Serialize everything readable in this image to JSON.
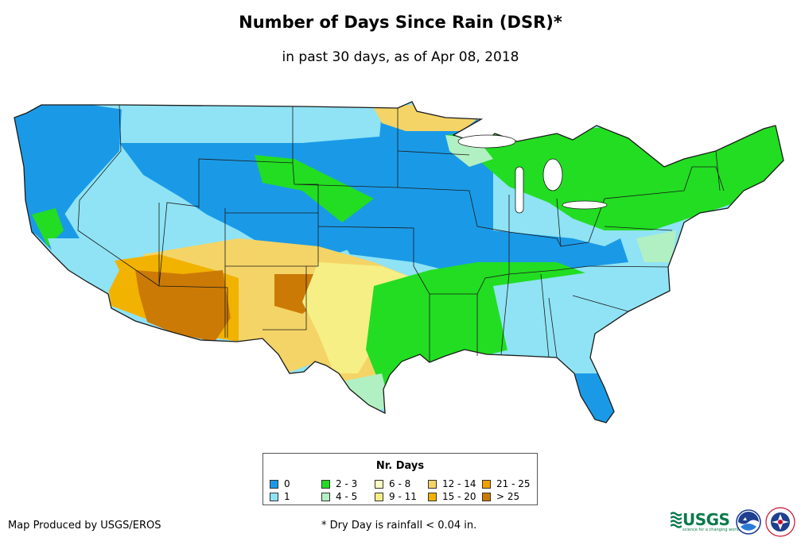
{
  "title": "Number of Days Since Rain (DSR)*",
  "subtitle": "in past 30 days, as of Apr 08, 2018",
  "legend": {
    "title": "Nr. Days",
    "items": [
      {
        "label": "0",
        "color": "#1a9ae6"
      },
      {
        "label": "1",
        "color": "#8fe3f5"
      },
      {
        "label": "2 - 3",
        "color": "#22dd22"
      },
      {
        "label": "4 - 5",
        "color": "#b1f0c2"
      },
      {
        "label": "6 - 8",
        "color": "#fbfbc2"
      },
      {
        "label": "9 - 11",
        "color": "#f6ef85"
      },
      {
        "label": "12 - 14",
        "color": "#f4d466"
      },
      {
        "label": "15 - 20",
        "color": "#f2b200"
      },
      {
        "label": "21 - 25",
        "color": "#f0a000"
      },
      {
        "label": "> 25",
        "color": "#cc7a06"
      }
    ]
  },
  "credit": "Map Produced by USGS/EROS",
  "footnote": "* Dry Day is rainfall < 0.04 in.",
  "logos": {
    "usgs": {
      "name": "usgs-logo",
      "text": "USGS",
      "tagline": "science for a changing world",
      "color": "#0a7a4a"
    },
    "noaa": {
      "name": "noaa-logo",
      "text": "NOAA"
    },
    "nws": {
      "name": "nws-logo",
      "text": "NATIONAL WEATHER SERVICE"
    }
  },
  "map_colors": {
    "outline": "#1a1a1a",
    "zero": "#1a9ae6",
    "one": "#8fe3f5",
    "two_three": "#22dd22",
    "four_five": "#b1f0c2",
    "six_eight": "#fbfbc2",
    "nine_eleven": "#f6ef85",
    "twelve_fourteen": "#f4d466",
    "fifteen_twenty": "#f2b200",
    "twentyone_twentyfive": "#f0a000",
    "over_twentyfive": "#cc7a06"
  }
}
